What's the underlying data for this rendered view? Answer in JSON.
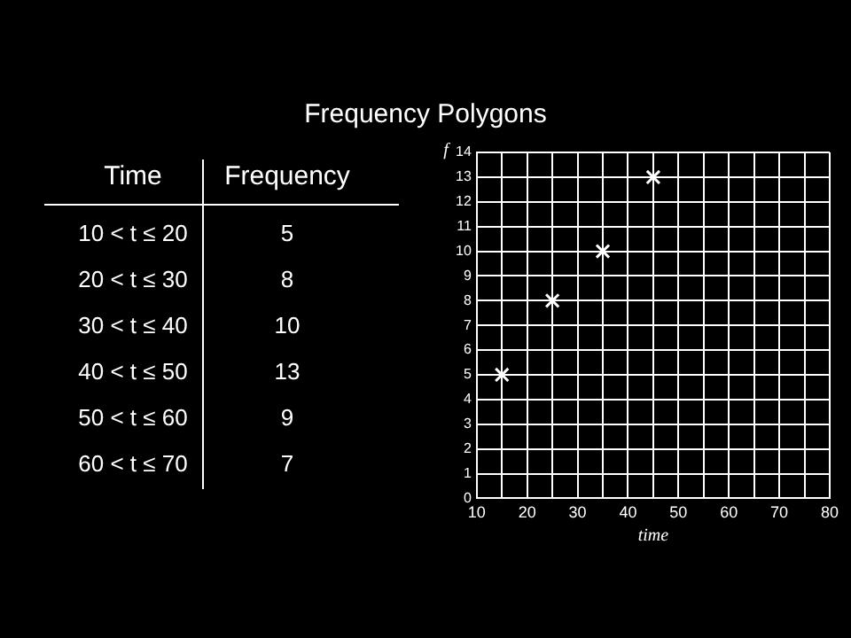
{
  "chart_data": [
    {
      "type": "other",
      "title": "Frequency Polygons",
      "annotations": [
        "Time",
        "Frequency",
        "10 < t ≤ 20",
        "5",
        "20 < t ≤ 30",
        "8",
        "30 < t ≤ 40",
        "10",
        "40 < t ≤ 50",
        "13",
        "50 < t ≤ 60",
        "9",
        "60 < t ≤ 70",
        "7"
      ]
    },
    {
      "type": "scatter",
      "xlabel": "time",
      "ylabel": "f",
      "x": [
        15,
        25,
        35,
        45
      ],
      "values": [
        5,
        8,
        10,
        13
      ],
      "color": "#ffffff",
      "marker": "cross",
      "xlim": [
        10,
        80
      ],
      "xticks": [
        10,
        {
          "value": 15,
          "label": null
        },
        20,
        {
          "value": 25,
          "label": null
        },
        30,
        {
          "value": 35,
          "label": null
        },
        40,
        {
          "value": 45,
          "label": null
        },
        50,
        {
          "value": 55,
          "label": null
        },
        60,
        {
          "value": 65,
          "label": null
        },
        70,
        {
          "value": 75,
          "label": null
        },
        80
      ],
      "ylim": [
        0,
        14
      ],
      "yticks": [
        0,
        1,
        2,
        3,
        4,
        5,
        6,
        7,
        8,
        9,
        10,
        11,
        12,
        13,
        14
      ],
      "grid": true
    }
  ]
}
